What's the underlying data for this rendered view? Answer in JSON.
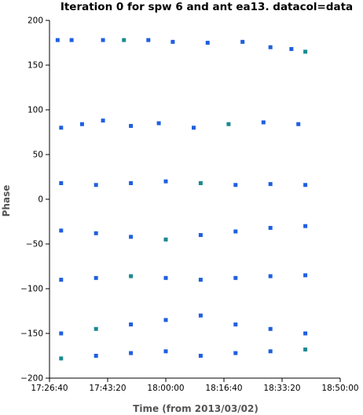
{
  "chart_data": {
    "type": "scatter",
    "title": "Iteration 0 for spw 6 and ant ea13.  datacol=data",
    "xlabel": "Time (from 2013/03/02)",
    "ylabel": "Phase",
    "xlim": [
      "17:26:40",
      "18:50:00"
    ],
    "ylim": [
      -200,
      200
    ],
    "x_ticks": [
      "17:26:40",
      "17:43:20",
      "18:00:00",
      "18:16:40",
      "18:33:20",
      "18:50:00"
    ],
    "y_ticks": [
      "200",
      "150",
      "100",
      "50",
      "0",
      "−50",
      "−100",
      "−150",
      "−200"
    ],
    "grid": false,
    "legend": "none",
    "colors": {
      "primary": "#1f5fe0",
      "secondary": "#1a8a90"
    },
    "series": [
      {
        "values": [
          {
            "x": "17:29:00",
            "y": 178
          },
          {
            "x": "17:33:00",
            "y": 178
          },
          {
            "x": "17:42:00",
            "y": 178
          },
          {
            "x": "17:48:00",
            "y": 178
          },
          {
            "x": "17:55:00",
            "y": 178
          },
          {
            "x": "18:02:00",
            "y": 176
          },
          {
            "x": "18:12:00",
            "y": 175
          },
          {
            "x": "18:22:00",
            "y": 176
          },
          {
            "x": "18:30:00",
            "y": 170
          },
          {
            "x": "18:36:00",
            "y": 168
          },
          {
            "x": "18:40:00",
            "y": 165
          },
          {
            "x": "17:30:00",
            "y": 80
          },
          {
            "x": "17:36:00",
            "y": 84
          },
          {
            "x": "17:42:00",
            "y": 88
          },
          {
            "x": "17:50:00",
            "y": 82
          },
          {
            "x": "17:58:00",
            "y": 85
          },
          {
            "x": "18:08:00",
            "y": 80
          },
          {
            "x": "18:18:00",
            "y": 84
          },
          {
            "x": "18:28:00",
            "y": 86
          },
          {
            "x": "18:38:00",
            "y": 84
          },
          {
            "x": "17:30:00",
            "y": 18
          },
          {
            "x": "17:40:00",
            "y": 16
          },
          {
            "x": "17:50:00",
            "y": 18
          },
          {
            "x": "18:00:00",
            "y": 20
          },
          {
            "x": "18:10:00",
            "y": 18
          },
          {
            "x": "18:20:00",
            "y": 16
          },
          {
            "x": "18:30:00",
            "y": 17
          },
          {
            "x": "18:40:00",
            "y": 16
          },
          {
            "x": "17:30:00",
            "y": -35
          },
          {
            "x": "17:40:00",
            "y": -38
          },
          {
            "x": "17:50:00",
            "y": -42
          },
          {
            "x": "18:00:00",
            "y": -45
          },
          {
            "x": "18:10:00",
            "y": -40
          },
          {
            "x": "18:20:00",
            "y": -36
          },
          {
            "x": "18:30:00",
            "y": -32
          },
          {
            "x": "18:40:00",
            "y": -30
          },
          {
            "x": "17:30:00",
            "y": -90
          },
          {
            "x": "17:40:00",
            "y": -88
          },
          {
            "x": "17:50:00",
            "y": -86
          },
          {
            "x": "18:00:00",
            "y": -88
          },
          {
            "x": "18:10:00",
            "y": -90
          },
          {
            "x": "18:20:00",
            "y": -88
          },
          {
            "x": "18:30:00",
            "y": -86
          },
          {
            "x": "18:40:00",
            "y": -85
          },
          {
            "x": "17:30:00",
            "y": -150
          },
          {
            "x": "17:40:00",
            "y": -145
          },
          {
            "x": "17:50:00",
            "y": -140
          },
          {
            "x": "18:00:00",
            "y": -135
          },
          {
            "x": "18:10:00",
            "y": -130
          },
          {
            "x": "18:20:00",
            "y": -140
          },
          {
            "x": "18:30:00",
            "y": -145
          },
          {
            "x": "18:40:00",
            "y": -150
          },
          {
            "x": "17:30:00",
            "y": -178
          },
          {
            "x": "17:40:00",
            "y": -175
          },
          {
            "x": "17:50:00",
            "y": -172
          },
          {
            "x": "18:00:00",
            "y": -170
          },
          {
            "x": "18:10:00",
            "y": -175
          },
          {
            "x": "18:20:00",
            "y": -172
          },
          {
            "x": "18:30:00",
            "y": -170
          },
          {
            "x": "18:40:00",
            "y": -168
          }
        ]
      }
    ]
  }
}
